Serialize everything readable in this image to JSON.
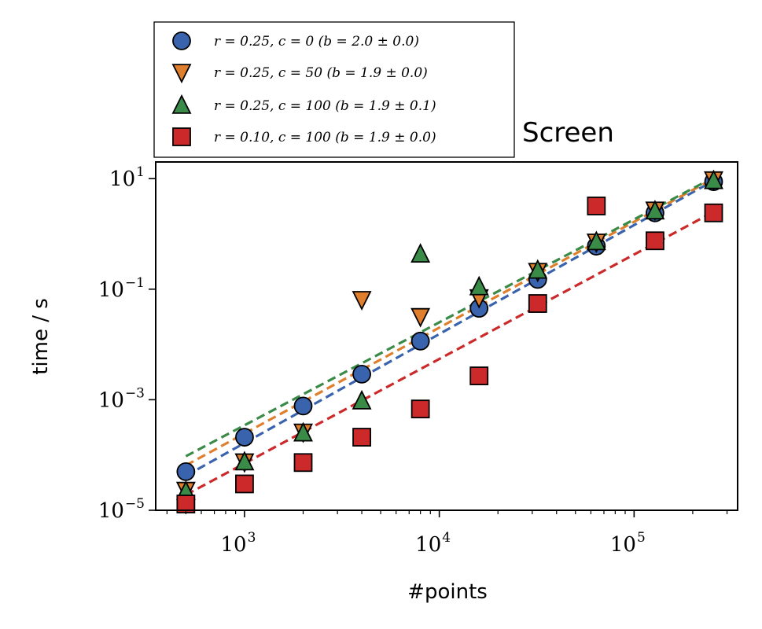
{
  "chart_data": {
    "type": "scatter",
    "title": "Screen",
    "xlabel": "#points",
    "ylabel": "time / s",
    "xscale": "log",
    "yscale": "log",
    "xlim": [
      350,
      340000
    ],
    "ylim": [
      1e-05,
      20
    ],
    "xticks": [
      {
        "base": "10",
        "exp": "3",
        "value": 1000
      },
      {
        "base": "10",
        "exp": "4",
        "value": 10000
      },
      {
        "base": "10",
        "exp": "5",
        "value": 100000
      }
    ],
    "yticks": [
      {
        "base": "10",
        "exp": "1",
        "value": 10
      },
      {
        "base": "10",
        "exp": "−1",
        "value": 0.1
      },
      {
        "base": "10",
        "exp": "−3",
        "value": 0.001
      },
      {
        "base": "10",
        "exp": "−5",
        "value": 1e-05
      }
    ],
    "grid": false,
    "legend_position": "above-left, outside plot",
    "series": [
      {
        "name": "r = 0.25, c = 0 (b = 2.0 ± 0.0)",
        "marker": "circle",
        "color": "#3a63ad",
        "x": [
          500,
          1000,
          2000,
          4000,
          8000,
          16000,
          32000,
          64000,
          128000,
          256000
        ],
        "y": [
          5e-05,
          0.00021,
          0.00077,
          0.0029,
          0.0115,
          0.045,
          0.15,
          0.6,
          2.4,
          8.8
        ],
        "fit": {
          "x": [
            500,
            256000
          ],
          "y": [
            4.2e-05,
            9.2
          ]
        }
      },
      {
        "name": "r = 0.25, c = 50 (b = 1.9 ± 0.0)",
        "marker": "triangle-down",
        "color": "#df7f2e",
        "x": [
          500,
          1000,
          2000,
          4000,
          8000,
          16000,
          32000,
          64000,
          128000,
          256000
        ],
        "y": [
          2.3e-05,
          7.5e-05,
          0.00026,
          0.065,
          0.032,
          0.07,
          0.21,
          0.71,
          2.7,
          9.5
        ],
        "fit": {
          "x": [
            500,
            256000
          ],
          "y": [
            6.5e-05,
            10
          ]
        }
      },
      {
        "name": "r = 0.25, c = 100 (b = 1.9 ± 0.1)",
        "marker": "triangle-up",
        "color": "#3a8a48",
        "x": [
          500,
          1000,
          2000,
          4000,
          8000,
          16000,
          32000,
          64000,
          128000,
          256000
        ],
        "y": [
          2.2e-05,
          7.5e-05,
          0.00025,
          0.00095,
          0.43,
          0.11,
          0.22,
          0.72,
          2.6,
          9.2
        ],
        "fit": {
          "x": [
            500,
            256000
          ],
          "y": [
            9.5e-05,
            10.5
          ]
        }
      },
      {
        "name": "r = 0.10, c = 100 (b = 1.9 ± 0.0)",
        "marker": "square",
        "color": "#cc2a2a",
        "x": [
          500,
          1000,
          2000,
          4000,
          8000,
          16000,
          32000,
          64000,
          128000,
          256000
        ],
        "y": [
          1.3e-05,
          3e-05,
          7.3e-05,
          0.00021,
          0.00068,
          0.0027,
          0.055,
          3.2,
          0.75,
          2.4
        ],
        "fit": {
          "x": [
            500,
            256000
          ],
          "y": [
            1.9e-05,
            2.5
          ]
        }
      }
    ]
  }
}
